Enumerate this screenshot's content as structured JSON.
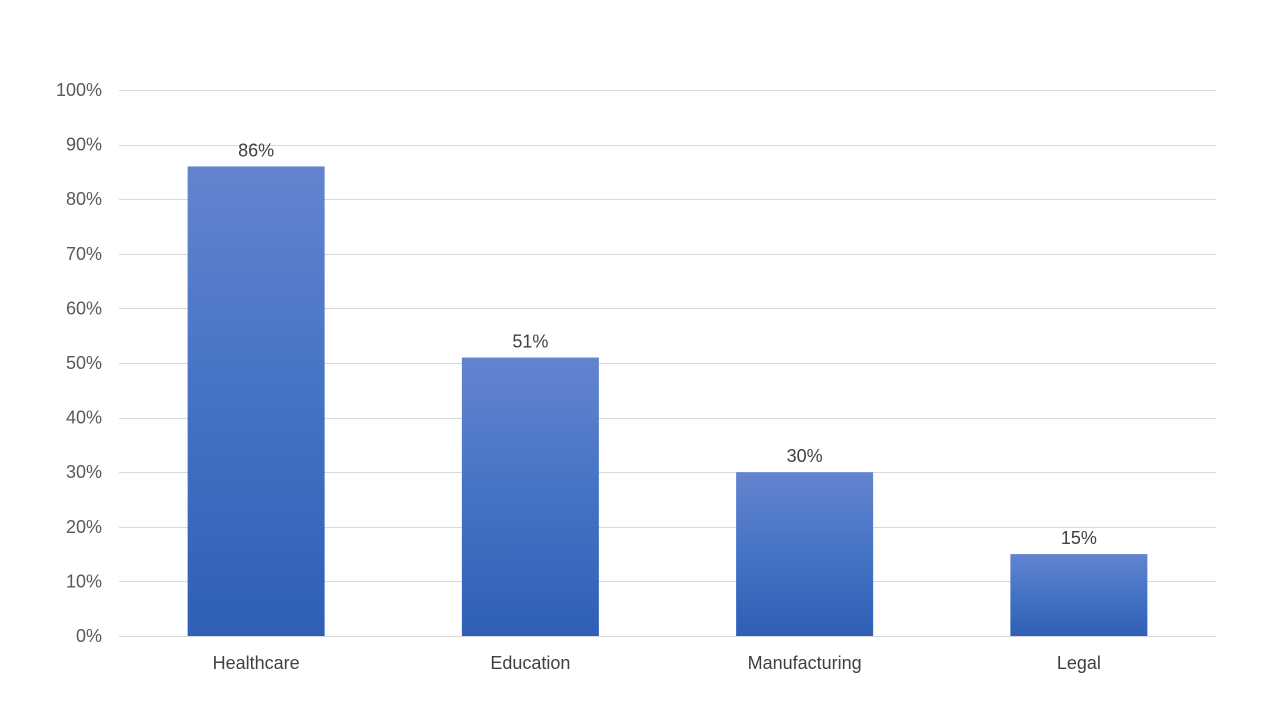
{
  "chart_data": {
    "type": "bar",
    "title": "",
    "xlabel": "",
    "ylabel": "",
    "categories": [
      "Healthcare",
      "Education",
      "Manufacturing",
      "Legal"
    ],
    "values": [
      86,
      51,
      30,
      15
    ],
    "value_unit": "%",
    "data_labels": [
      "86%",
      "51%",
      "30%",
      "15%"
    ],
    "ylim": [
      0,
      100
    ],
    "yticks": [
      0,
      10,
      20,
      30,
      40,
      50,
      60,
      70,
      80,
      90,
      100
    ],
    "ytick_labels": [
      "0%",
      "10%",
      "20%",
      "30%",
      "40%",
      "50%",
      "60%",
      "70%",
      "80%",
      "90%",
      "100%"
    ],
    "grid": true,
    "legend": "none",
    "colors": {
      "bar_top": "#6384cf",
      "bar_mid": "#4472c4",
      "bar_bottom": "#2f5fb6",
      "gridline": "#d9d9d9",
      "axis_text": "#595959",
      "label_text": "#404040"
    }
  }
}
